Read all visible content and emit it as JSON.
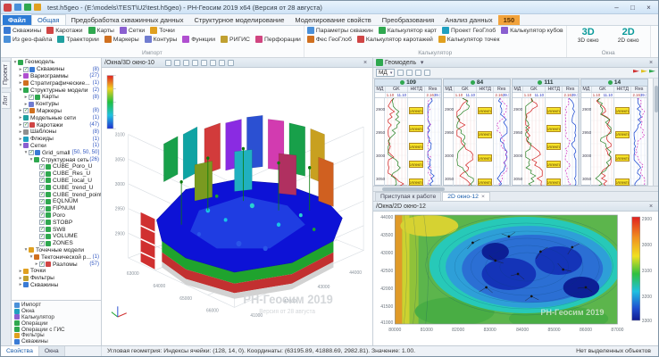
{
  "window": {
    "title": "test.h5geo - (E:\\models\\TEST\\U2\\test.h5geo) - РН-Геосим 2019 x64 (Версия от 28 августа)",
    "controls": {
      "minimize": "–",
      "maximize": "□",
      "close": "×"
    }
  },
  "ribbon": {
    "tabs": [
      {
        "label": "Файл",
        "style": "file"
      },
      {
        "label": "Общая",
        "style": "active"
      },
      {
        "label": "Предобработка скважинных данных"
      },
      {
        "label": "Структурное моделирование"
      },
      {
        "label": "Моделирование свойств"
      },
      {
        "label": "Преобразования"
      },
      {
        "label": "Анализ данных"
      },
      {
        "label": "150",
        "style": "accent"
      }
    ],
    "groups": [
      {
        "label": "Импорт",
        "rows": [
          [
            {
              "label": "Скважины",
              "icon": "wells-icon",
              "c": "#3a7bd5"
            },
            {
              "label": "Каротажи",
              "icon": "logs-icon",
              "c": "#d04545"
            },
            {
              "label": "Карты",
              "icon": "maps-icon",
              "c": "#2fa84f"
            },
            {
              "label": "Сетки",
              "icon": "grids-icon",
              "c": "#8a5fd0"
            },
            {
              "label": "Точки",
              "icon": "points-icon",
              "c": "#e0a020"
            }
          ],
          [
            {
              "label": "Из geo-файла",
              "icon": "geo-file-icon",
              "c": "#4a90d9"
            },
            {
              "label": "Траектории",
              "icon": "trajectories-icon",
              "c": "#20a0a0"
            },
            {
              "label": "Маркеры",
              "icon": "markers-icon",
              "c": "#d07020"
            },
            {
              "label": "Контуры",
              "icon": "contours-icon",
              "c": "#707cd0"
            },
            {
              "label": "Функции",
              "icon": "functions-icon",
              "c": "#b04fd0"
            },
            {
              "label": "РИГИС",
              "icon": "rigis-icon",
              "c": "#c0a030"
            },
            {
              "label": "Перфорации",
              "icon": "perforations-icon",
              "c": "#d04580"
            }
          ]
        ]
      },
      {
        "label": "Калькулятор",
        "rows": [
          [
            {
              "label": "Параметры скважин",
              "icon": "well-params-icon",
              "c": "#4a90d9"
            },
            {
              "label": "Калькулятор карт",
              "icon": "map-calculator-icon",
              "c": "#2fa84f"
            },
            {
              "label": "Проект ГеоГлоб",
              "icon": "geoglob-project-icon",
              "c": "#20a0c0"
            },
            {
              "label": "Калькулятор кубов",
              "icon": "cube-calculator-icon",
              "c": "#8a5fd0"
            }
          ],
          [
            {
              "label": "Фес ГеоГлоб",
              "icon": "fes-geoglob-icon",
              "c": "#d07020"
            },
            {
              "label": "Калькулятор каротажей",
              "icon": "log-calculator-icon",
              "c": "#d04545"
            },
            {
              "label": "Калькулятор точек",
              "icon": "point-calculator-icon",
              "c": "#e0a020"
            }
          ]
        ]
      },
      {
        "label": "Окна",
        "big": [
          {
            "label": "3D окно",
            "glyph": "3D",
            "icon": "3d-window-icon"
          },
          {
            "label": "2D окно",
            "glyph": "2D",
            "icon": "2d-window-icon"
          }
        ]
      }
    ]
  },
  "sidestrip": {
    "tabs": [
      "Проект",
      "Лог"
    ]
  },
  "tree": {
    "items": [
      {
        "l": 0,
        "t": 1,
        "icon": "geomodel-icon",
        "c": "#2fa84f",
        "label": "Геомодель"
      },
      {
        "l": 1,
        "t": 2,
        "cb": 1,
        "icon": "wells-icon",
        "c": "#3a7bd5",
        "label": "Скважины",
        "count": "(8)"
      },
      {
        "l": 1,
        "t": 2,
        "icon": "variograms-icon",
        "c": "#b04fd0",
        "label": "Вариограммы",
        "count": "(27)"
      },
      {
        "l": 1,
        "t": 2,
        "icon": "stratigraphy-icon",
        "c": "#d07020",
        "label": "Стратиграфические...",
        "count": "(1)"
      },
      {
        "l": 1,
        "t": 1,
        "icon": "structural-models-icon",
        "c": "#2fa84f",
        "label": "Структурные модели",
        "count": "(2)"
      },
      {
        "l": 2,
        "t": 2,
        "cb": 1,
        "icon": "maps-icon",
        "c": "#2fa84f",
        "label": "Карты",
        "count": "(8)"
      },
      {
        "l": 2,
        "t": 2,
        "icon": "contours-icon",
        "c": "#707cd0",
        "label": "Контуры"
      },
      {
        "l": 1,
        "t": 2,
        "cb": 1,
        "icon": "markers-icon",
        "c": "#d07020",
        "label": "Маркеры",
        "count": "(8)"
      },
      {
        "l": 1,
        "t": 2,
        "icon": "model-nets-icon",
        "c": "#20a0a0",
        "label": "Модельные сети",
        "count": "(1)"
      },
      {
        "l": 1,
        "t": 2,
        "cb": 1,
        "icon": "logs-icon",
        "c": "#d04545",
        "label": "Каротажи",
        "count": "(47)"
      },
      {
        "l": 1,
        "t": 2,
        "icon": "templates-icon",
        "c": "#909090",
        "label": "Шаблоны",
        "count": "(8)"
      },
      {
        "l": 1,
        "t": 2,
        "icon": "fluids-icon",
        "c": "#20a0c0",
        "label": "Флюиды",
        "count": "(1)"
      },
      {
        "l": 1,
        "t": 1,
        "icon": "grids-icon",
        "c": "#8a5fd0",
        "label": "Сетки",
        "count": "(1)"
      },
      {
        "l": 2,
        "t": 1,
        "cb": 1,
        "icon": "grid-icon",
        "c": "#3a7bd5",
        "label": "Grid_small",
        "count": "[50, 50, 50]"
      },
      {
        "l": 3,
        "t": 1,
        "icon": "structural-grid-icon",
        "c": "#2fa84f",
        "label": "Структурная сеть",
        "count": "(26)"
      },
      {
        "l": 4,
        "cb": 1,
        "icon": "cube-icon",
        "c": "#2fa84f",
        "label": "CUBE_Poro_U"
      },
      {
        "l": 4,
        "cb": 1,
        "icon": "cube-icon",
        "c": "#2fa84f",
        "label": "CUBE_Res_U"
      },
      {
        "l": 4,
        "cb": 1,
        "icon": "cube-icon",
        "c": "#2fa84f",
        "label": "CUBE_local_U"
      },
      {
        "l": 4,
        "cb": 1,
        "icon": "cube-icon",
        "c": "#2fa84f",
        "label": "CUBE_trend_U"
      },
      {
        "l": 4,
        "cb": 1,
        "icon": "cube-icon",
        "c": "#2fa84f",
        "label": "CUBE_trend_points"
      },
      {
        "l": 4,
        "cb": 1,
        "icon": "cube-icon",
        "c": "#2fa84f",
        "label": "EQLNUM"
      },
      {
        "l": 4,
        "cb": 1,
        "icon": "cube-icon",
        "c": "#2fa84f",
        "label": "FIPNUM"
      },
      {
        "l": 4,
        "cb": 1,
        "icon": "cube-icon",
        "c": "#2fa84f",
        "label": "Poro"
      },
      {
        "l": 4,
        "cb": 1,
        "icon": "cube-icon",
        "c": "#2fa84f",
        "label": "STOBP"
      },
      {
        "l": 4,
        "cb": 1,
        "icon": "cube-icon",
        "c": "#2fa84f",
        "label": "SW8"
      },
      {
        "l": 4,
        "cb": 1,
        "icon": "cube-icon",
        "c": "#2fa84f",
        "label": "VOLUME"
      },
      {
        "l": 4,
        "cb": 1,
        "icon": "cube-icon",
        "c": "#2fa84f",
        "label": "ZONES"
      },
      {
        "l": 2,
        "t": 1,
        "icon": "point-models-icon",
        "c": "#e0a020",
        "label": "Точечные модели"
      },
      {
        "l": 3,
        "t": 1,
        "icon": "tectonic-model-icon",
        "c": "#d07020",
        "label": "Тектонической р...",
        "count": "(1)"
      },
      {
        "l": 4,
        "t": 2,
        "cb": 1,
        "icon": "faults-icon",
        "c": "#d04545",
        "label": "Разломы",
        "count": "(57)"
      },
      {
        "l": 1,
        "t": 2,
        "icon": "points-icon",
        "c": "#e0a020",
        "label": "Точки"
      },
      {
        "l": 1,
        "t": 2,
        "icon": "filters-icon",
        "c": "#c0a030",
        "label": "Фильтры"
      },
      {
        "l": 1,
        "t": 2,
        "icon": "wells-icon",
        "c": "#3a7bd5",
        "label": "Скважины"
      }
    ],
    "sections": [
      {
        "label": "Импорт",
        "c": "#4a90d9",
        "icon": "import-icon"
      },
      {
        "label": "Окна",
        "c": "#20a0c0",
        "icon": "windows-icon"
      },
      {
        "label": "Калькулятор",
        "c": "#8a5fd0",
        "icon": "calculator-icon"
      },
      {
        "label": "Операции",
        "c": "#2fa84f",
        "icon": "operations-icon"
      },
      {
        "label": "Операции с ГИС",
        "c": "#2fa84f",
        "icon": "gis-operations-icon"
      },
      {
        "label": "Фильтры",
        "c": "#e0a020",
        "icon": "filters-icon"
      },
      {
        "label": "Скважины",
        "c": "#3a7bd5",
        "icon": "wells-icon"
      }
    ]
  },
  "view3d": {
    "title": "/Окна/3D окно-10",
    "z_ticks": [
      "3100",
      "3050",
      "3000",
      "2950",
      "2900"
    ],
    "x_ticks": [
      "63000",
      "64000",
      "65000",
      "66000"
    ],
    "y_ticks": [
      "41000",
      "42000",
      "43000",
      "44000"
    ],
    "watermark1": "РН-Геосим 2019",
    "watermark2": "Версия от 28 августа"
  },
  "wellpanel": {
    "title": "Геомодель",
    "combo_value": "МД",
    "track_headers": [
      "МД",
      "GK",
      "НКТД",
      "Res"
    ],
    "ranges": {
      "gk_min": "1.10",
      "gk_max": "11.10",
      "res_min": "2.16",
      "res_max": "39.71"
    },
    "depths": [
      "2900",
      "2950",
      "3000",
      "3050"
    ],
    "labels": {
      "collector": "Коллектор"
    },
    "wells": [
      {
        "name": "109",
        "collectors": 5
      },
      {
        "name": "84",
        "collectors": 4
      },
      {
        "name": "111",
        "collectors": 5
      },
      {
        "name": "14",
        "collectors": 4
      }
    ]
  },
  "rtabs": [
    {
      "label": "Приступая к работе",
      "active": false
    },
    {
      "label": "2D окно-12",
      "active": true
    }
  ],
  "map2d": {
    "title": "/Окна/2D окно-12",
    "x_ticks": [
      "80000",
      "81000",
      "82000",
      "83000",
      "84000",
      "85000",
      "86000",
      "87000"
    ],
    "y_ticks": [
      "44000",
      "43500",
      "43000",
      "42500",
      "42000",
      "41500",
      "41000"
    ],
    "cb_ticks": [
      "2900",
      "3000",
      "3100",
      "3200",
      "3300"
    ]
  },
  "statusbar": {
    "tabs": [
      "Свойства",
      "Окна"
    ],
    "text": "Угловая геометрия: Индексы ячейки: (128, 14, 0). Координаты: (63195.89, 41888.69, 2982.81). Значение: 1.00.",
    "right": "Нет выделенных объектов"
  }
}
